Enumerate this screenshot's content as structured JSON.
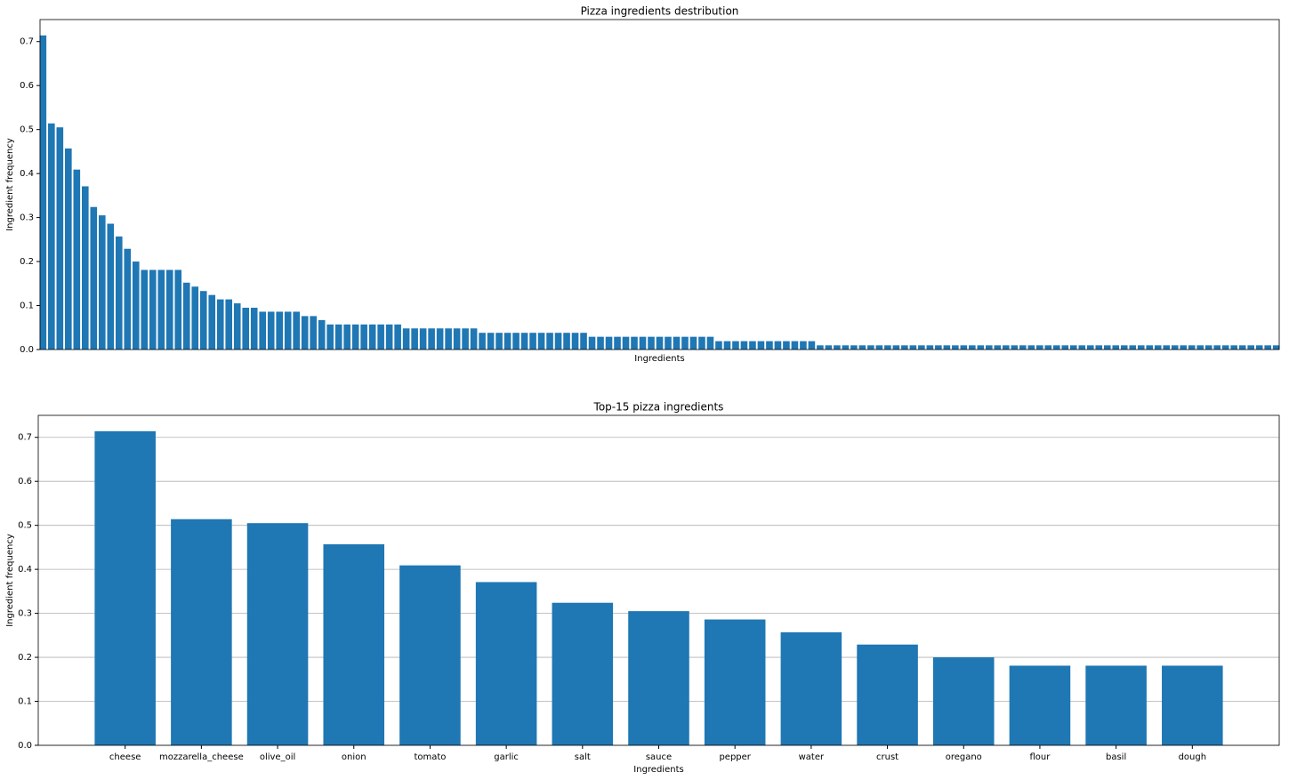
{
  "chart_data": [
    {
      "type": "bar",
      "title": "Pizza ingredients destribution",
      "xlabel": "Ingredients",
      "ylabel": "Ingredient frequency",
      "color": "#1f77b4",
      "grid": false,
      "values": [
        0.714,
        0.514,
        0.505,
        0.457,
        0.409,
        0.371,
        0.324,
        0.305,
        0.286,
        0.257,
        0.229,
        0.2,
        0.181,
        0.181,
        0.181,
        0.181,
        0.181,
        0.152,
        0.143,
        0.133,
        0.124,
        0.114,
        0.114,
        0.105,
        0.095,
        0.095,
        0.086,
        0.086,
        0.086,
        0.086,
        0.086,
        0.076,
        0.076,
        0.067,
        0.057,
        0.057,
        0.057,
        0.057,
        0.057,
        0.057,
        0.057,
        0.057,
        0.057,
        0.048,
        0.048,
        0.048,
        0.048,
        0.048,
        0.048,
        0.048,
        0.048,
        0.048,
        0.038,
        0.038,
        0.038,
        0.038,
        0.038,
        0.038,
        0.038,
        0.038,
        0.038,
        0.038,
        0.038,
        0.038,
        0.038,
        0.029,
        0.029,
        0.029,
        0.029,
        0.029,
        0.029,
        0.029,
        0.029,
        0.029,
        0.029,
        0.029,
        0.029,
        0.029,
        0.029,
        0.029,
        0.019,
        0.019,
        0.019,
        0.019,
        0.019,
        0.019,
        0.019,
        0.019,
        0.019,
        0.019,
        0.019,
        0.019,
        0.0095,
        0.0095,
        0.0095,
        0.0095,
        0.0095,
        0.0095,
        0.0095,
        0.0095,
        0.0095,
        0.0095,
        0.0095,
        0.0095,
        0.0095,
        0.0095,
        0.0095,
        0.0095,
        0.0095,
        0.0095,
        0.0095,
        0.0095,
        0.0095,
        0.0095,
        0.0095,
        0.0095,
        0.0095,
        0.0095,
        0.0095,
        0.0095,
        0.0095,
        0.0095,
        0.0095,
        0.0095,
        0.0095,
        0.0095,
        0.0095,
        0.0095,
        0.0095,
        0.0095,
        0.0095,
        0.0095,
        0.0095,
        0.0095,
        0.0095,
        0.0095,
        0.0095,
        0.0095,
        0.0095,
        0.0095,
        0.0095,
        0.0095,
        0.0095,
        0.0095,
        0.0095,
        0.0095,
        0.0095
      ],
      "ylim": [
        0,
        0.75
      ],
      "yticks": [
        {
          "value": 0,
          "label": "0.0"
        },
        0.1,
        0.2,
        0.3,
        0.4,
        0.5,
        0.6,
        0.7
      ]
    },
    {
      "type": "bar",
      "title": "Top-15 pizza ingredients",
      "xlabel": "Ingredients",
      "ylabel": "Ingredient frequency",
      "color": "#1f77b4",
      "grid": true,
      "categories": [
        "cheese",
        "mozzarella_cheese",
        "olive_oil",
        "onion",
        "tomato",
        "garlic",
        "salt",
        "sauce",
        "pepper",
        "water",
        "crust",
        "oregano",
        "flour",
        "basil",
        "dough"
      ],
      "values": [
        0.714,
        0.514,
        0.505,
        0.457,
        0.409,
        0.371,
        0.324,
        0.305,
        0.286,
        0.257,
        0.229,
        0.2,
        0.181,
        0.181,
        0.181
      ],
      "ylim": [
        0,
        0.75
      ],
      "yticks": [
        {
          "value": 0,
          "label": "0.0"
        },
        0.1,
        0.2,
        0.3,
        0.4,
        0.5,
        0.6,
        0.7
      ]
    }
  ]
}
